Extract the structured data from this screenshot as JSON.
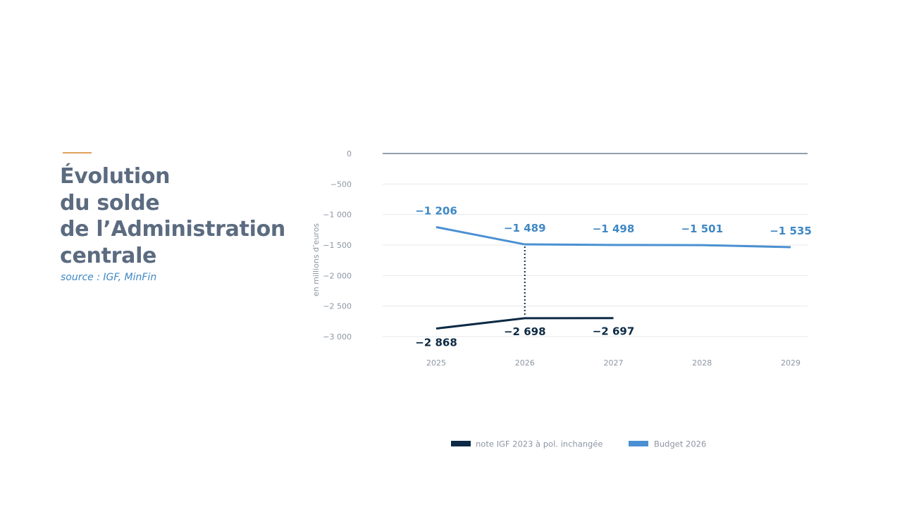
{
  "header": {
    "title_lines": [
      "Évolution",
      "du solde",
      "de l’Administration",
      "centrale"
    ],
    "source": "source : IGF, MinFin"
  },
  "colors": {
    "accent": "#e0a05a",
    "title": "#5b6b80",
    "source": "#3f88c5",
    "igf_series": "#0c2a45",
    "budget_series": "#4a90d2",
    "budget_labels": "#3f88c5",
    "zero_line": "#6d7f93",
    "grid": "#e6e8eb",
    "tick_text": "#8d96a3"
  },
  "chart_data": {
    "type": "line",
    "ylabel": "en millions d’euros",
    "ylim": [
      -3000,
      0
    ],
    "yticks": [
      0,
      -500,
      -1000,
      -1500,
      -2000,
      -2500,
      -3000
    ],
    "ytick_labels": [
      "0",
      "−500",
      "−1 000",
      "−1 500",
      "−2 000",
      "−2 500",
      "−3 000"
    ],
    "x": [
      2025,
      2026,
      2027,
      2028,
      2029
    ],
    "x_labels": [
      "2025",
      "2026",
      "2027",
      "2028",
      "2029"
    ],
    "grid": true,
    "legend_position": "bottom",
    "series": [
      {
        "key": "igf",
        "name": "note IGF 2023 à pol. inchangée",
        "x": [
          2025,
          2026,
          2027
        ],
        "values": [
          -2868,
          -2698,
          -2697
        ],
        "labels": [
          "−2 868",
          "−2 698",
          "−2 697"
        ]
      },
      {
        "key": "budget",
        "name": "Budget 2026",
        "x": [
          2025,
          2026,
          2027,
          2028,
          2029
        ],
        "values": [
          -1206,
          -1489,
          -1498,
          -1501,
          -1535
        ],
        "labels": [
          "−1 206",
          "−1 489",
          "−1 498",
          "−1 501",
          "−1 535"
        ]
      }
    ],
    "annotations": [
      {
        "type": "dotted-connector",
        "x": 2026,
        "from_series": "budget",
        "to_series": "igf"
      }
    ]
  }
}
